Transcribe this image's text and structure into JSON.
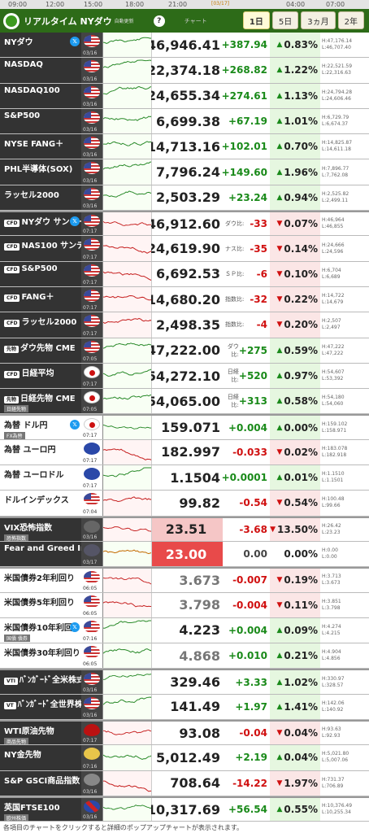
{
  "timebar": [
    "09:00",
    "12:00",
    "15:00",
    "18:00",
    "21:00",
    "[03/17]",
    "04:00",
    "07:00"
  ],
  "header": {
    "title": "リアルタイム NYダウ",
    "update": "自動更新",
    "help": "?",
    "chart_label": "チャート",
    "tabs": [
      "1日",
      "5日",
      "3ヵ月",
      "2年"
    ]
  },
  "rows": [
    {
      "name": "NYダウ",
      "sub": "",
      "x": true,
      "flag": "us",
      "date": "03/16",
      "price": "46,946.41",
      "lbl": "",
      "chg": "+387.94",
      "dir": "up",
      "pct": "0.83%",
      "h": "H:47,176.14",
      "l": "L:46,707.40",
      "gap": false,
      "light": false
    },
    {
      "name": "NASDAQ",
      "sub": "",
      "x": false,
      "flag": "us",
      "date": "03/16",
      "price": "22,374.18",
      "lbl": "",
      "chg": "+268.82",
      "dir": "up",
      "pct": "1.22%",
      "h": "H:22,521.59",
      "l": "L:22,316.63",
      "gap": false,
      "light": false
    },
    {
      "name": "NASDAQ100",
      "sub": "",
      "x": false,
      "flag": "us",
      "date": "03/16",
      "price": "24,655.34",
      "lbl": "",
      "chg": "+274.61",
      "dir": "up",
      "pct": "1.13%",
      "h": "H:24,794.28",
      "l": "L:24,606.46",
      "gap": false,
      "light": false
    },
    {
      "name": "S&P500",
      "sub": "",
      "x": false,
      "flag": "us",
      "date": "03/16",
      "price": "6,699.38",
      "lbl": "",
      "chg": "+67.19",
      "dir": "up",
      "pct": "1.01%",
      "h": "H:6,729.79",
      "l": "L:6,674.37",
      "gap": false,
      "light": false
    },
    {
      "name": "NYSE FANG＋",
      "sub": "",
      "x": false,
      "flag": "us",
      "date": "03/16",
      "price": "14,713.16",
      "lbl": "",
      "chg": "+102.01",
      "dir": "up",
      "pct": "0.70%",
      "h": "H:14,825.87",
      "l": "L:14,611.18",
      "gap": false,
      "light": false
    },
    {
      "name": "PHL半導体(SOX)",
      "sub": "",
      "x": false,
      "flag": "us",
      "date": "03/16",
      "price": "7,796.24",
      "lbl": "",
      "chg": "+149.60",
      "dir": "up",
      "pct": "1.96%",
      "h": "H:7,896.77",
      "l": "L:7,762.08",
      "gap": false,
      "light": false
    },
    {
      "name": "ラッセル2000",
      "sub": "",
      "x": false,
      "flag": "us",
      "date": "03/16",
      "price": "2,503.29",
      "lbl": "",
      "chg": "+23.24",
      "dir": "up",
      "pct": "0.94%",
      "h": "H:2,525.82",
      "l": "L:2,499.11",
      "gap": false,
      "light": false
    },
    {
      "name": "NYダウ サンデー",
      "sub": "",
      "cfd": "CFD",
      "x": true,
      "flag": "us",
      "date": "07:17",
      "price": "46,912.60",
      "lbl": "ダウ比:",
      "chg": "-33",
      "dir": "dn",
      "pct": "0.07%",
      "h": "H:46,964",
      "l": "L:46,855",
      "gap": true,
      "light": false
    },
    {
      "name": "NAS100 サンデー",
      "sub": "",
      "cfd": "CFD",
      "x": false,
      "flag": "us",
      "date": "07:17",
      "price": "24,619.90",
      "lbl": "ナス比:",
      "chg": "-35",
      "dir": "dn",
      "pct": "0.14%",
      "h": "H:24,666",
      "l": "L:24,596",
      "gap": false,
      "light": false
    },
    {
      "name": "S&P500",
      "sub": "",
      "cfd": "CFD",
      "x": false,
      "flag": "us",
      "date": "07:17",
      "price": "6,692.53",
      "lbl": "ＳＰ比:",
      "chg": "-6",
      "dir": "dn",
      "pct": "0.10%",
      "h": "H:6,704",
      "l": "L:6,689",
      "gap": false,
      "light": false
    },
    {
      "name": "FANG＋",
      "sub": "",
      "cfd": "CFD",
      "x": false,
      "flag": "us",
      "date": "07:17",
      "price": "14,680.20",
      "lbl": "指数比:",
      "chg": "-32",
      "dir": "dn",
      "pct": "0.22%",
      "h": "H:14,722",
      "l": "L:14,679",
      "gap": false,
      "light": false
    },
    {
      "name": "ラッセル2000",
      "sub": "",
      "cfd": "CFD",
      "x": false,
      "flag": "us",
      "date": "07:17",
      "price": "2,498.35",
      "lbl": "指数比:",
      "chg": "-4",
      "dir": "dn",
      "pct": "0.20%",
      "h": "H:2,507",
      "l": "L:2,497",
      "gap": false,
      "light": false
    },
    {
      "name": "ダウ先物 CME",
      "sub": "",
      "cfd": "先物",
      "x": false,
      "flag": "us",
      "date": "07:05",
      "price": "47,222.00",
      "lbl": "ダウ比:",
      "chg": "+275",
      "dir": "up",
      "pct": "0.59%",
      "h": "H:47,222",
      "l": "L:47,222",
      "gap": false,
      "light": false
    },
    {
      "name": "日経平均",
      "sub": "",
      "cfd": "CFD",
      "x": false,
      "flag": "jp",
      "date": "07:17",
      "price": "54,272.10",
      "lbl": "日経比:",
      "chg": "+520",
      "dir": "up",
      "pct": "0.97%",
      "h": "H:54,607",
      "l": "L:53,392",
      "gap": false,
      "light": false
    },
    {
      "name": "日経先物 CME",
      "sub": "日経先物",
      "cfd": "先物",
      "x": false,
      "flag": "jp",
      "date": "07:05",
      "price": "54,065.00",
      "lbl": "日経比:",
      "chg": "+313",
      "dir": "up",
      "pct": "0.58%",
      "h": "H:54,180",
      "l": "L:54,060",
      "gap": false,
      "light": false
    },
    {
      "name": "為替 ドル円",
      "sub": "FX為替",
      "x": true,
      "flag": "jp",
      "date": "07:17",
      "price": "159.071",
      "lbl": "",
      "chg": "+0.004",
      "dir": "up",
      "pct": "0.00%",
      "h": "H:159.102",
      "l": "L:158.971",
      "gap": true,
      "light": true
    },
    {
      "name": "為替 ユーロ円",
      "sub": "",
      "x": false,
      "flag": "eu",
      "date": "07:17",
      "price": "182.997",
      "lbl": "",
      "chg": "-0.033",
      "dir": "dn",
      "pct": "0.02%",
      "h": "H:183.078",
      "l": "L:182.918",
      "gap": false,
      "light": true
    },
    {
      "name": "為替 ユーロドル",
      "sub": "",
      "x": false,
      "flag": "eu",
      "date": "07:17",
      "price": "1.1504",
      "lbl": "",
      "chg": "+0.0001",
      "dir": "up",
      "pct": "0.01%",
      "h": "H:1.1510",
      "l": "L:1.1501",
      "gap": false,
      "light": true
    },
    {
      "name": "ドルインデックス",
      "sub": "",
      "x": false,
      "flag": "us",
      "date": "07:04",
      "price": "99.82",
      "lbl": "",
      "chg": "-0.54",
      "dir": "dn",
      "pct": "0.54%",
      "h": "H:100.48",
      "l": "L:99.66",
      "gap": false,
      "light": true
    },
    {
      "name": "VIX恐怖指数",
      "sub": "恐怖指数",
      "x": false,
      "flag": "vix",
      "date": "03/16",
      "price": "23.51",
      "lbl": "",
      "chg": "-3.68",
      "dir": "dn",
      "pct": "13.50%",
      "h": "H:26.42",
      "l": "L:23.23",
      "gap": true,
      "light": false,
      "box": "box"
    },
    {
      "name": "Fear and Greed Index",
      "sub": "",
      "x": false,
      "flag": "fg",
      "date": "03/17",
      "price": "23.00",
      "lbl": "",
      "chg": "0.00",
      "dir": "nc",
      "pct": "0.00%",
      "h": "H:0.00",
      "l": "L:0.00",
      "gap": false,
      "light": false,
      "box": "box2"
    },
    {
      "name": "米国債券2年利回り",
      "sub": "",
      "x": false,
      "flag": "us",
      "date": "06:05",
      "price": "3.673",
      "lbl": "",
      "chg": "-0.007",
      "dir": "dn",
      "pct": "0.19%",
      "h": "H:3.713",
      "l": "L:3.673",
      "gap": true,
      "light": true,
      "grey": true
    },
    {
      "name": "米国債券5年利回り",
      "sub": "",
      "x": false,
      "flag": "us",
      "date": "06:05",
      "price": "3.798",
      "lbl": "",
      "chg": "-0.004",
      "dir": "dn",
      "pct": "0.11%",
      "h": "H:3.851",
      "l": "L:3.798",
      "gap": false,
      "light": true,
      "grey": true
    },
    {
      "name": "米国債券10年利回",
      "sub": "国債 債券",
      "x": true,
      "flag": "us",
      "date": "07:16",
      "price": "4.223",
      "lbl": "",
      "chg": "+0.004",
      "dir": "up",
      "pct": "0.09%",
      "h": "H:4.274",
      "l": "L:4.215",
      "gap": false,
      "light": true
    },
    {
      "name": "米国債券30年利回り",
      "sub": "",
      "x": false,
      "flag": "us",
      "date": "06:05",
      "price": "4.868",
      "lbl": "",
      "chg": "+0.010",
      "dir": "up",
      "pct": "0.21%",
      "h": "H:4.904",
      "l": "L:4.856",
      "gap": false,
      "light": true,
      "grey": true
    },
    {
      "name": "ﾊﾞﾝｶﾞｰﾄﾞ全米株式 ETF",
      "sub": "",
      "cfd": "VTI",
      "x": false,
      "flag": "us",
      "date": "03/16",
      "price": "329.46",
      "lbl": "",
      "chg": "+3.33",
      "dir": "up",
      "pct": "1.02%",
      "h": "H:330.97",
      "l": "L:328.57",
      "gap": true,
      "light": false
    },
    {
      "name": "ﾊﾞﾝｶﾞｰﾄﾞ全世界株式 ETF",
      "sub": "",
      "cfd": "VT",
      "x": false,
      "flag": "us",
      "date": "03/16",
      "price": "141.49",
      "lbl": "",
      "chg": "+1.97",
      "dir": "up",
      "pct": "1.41%",
      "h": "H:142.06",
      "l": "L:140.92",
      "gap": false,
      "light": false
    },
    {
      "name": "WTI原油先物",
      "sub": "商品先物",
      "x": false,
      "flag": "oil",
      "date": "07:17",
      "price": "93.08",
      "lbl": "",
      "chg": "-0.04",
      "dir": "dn",
      "pct": "0.04%",
      "h": "H:93.63",
      "l": "L:92.93",
      "gap": true,
      "light": false
    },
    {
      "name": "NY金先物",
      "sub": "",
      "x": false,
      "flag": "gold",
      "date": "07:16",
      "price": "5,012.49",
      "lbl": "",
      "chg": "+2.19",
      "dir": "up",
      "pct": "0.04%",
      "h": "H:5,021.80",
      "l": "L:5,007.06",
      "gap": false,
      "light": false
    },
    {
      "name": "S&P GSCI商品指数",
      "sub": "",
      "x": false,
      "flag": "gear",
      "date": "03/16",
      "price": "708.64",
      "lbl": "",
      "chg": "-14.22",
      "dir": "dn",
      "pct": "1.97%",
      "h": "H:731.37",
      "l": "L:706.89",
      "gap": false,
      "light": false
    },
    {
      "name": "英国FTSE100",
      "sub": "欧州株価",
      "x": false,
      "flag": "gb",
      "date": "03/16",
      "price": "10,317.69",
      "lbl": "",
      "chg": "+56.54",
      "dir": "up",
      "pct": "0.55%",
      "h": "H:10,376.49",
      "l": "L:10,255.34",
      "gap": true,
      "light": false
    }
  ],
  "footnote": "各項目のチャートをクリックすると詳細のポップアップチャートが表示されます。"
}
